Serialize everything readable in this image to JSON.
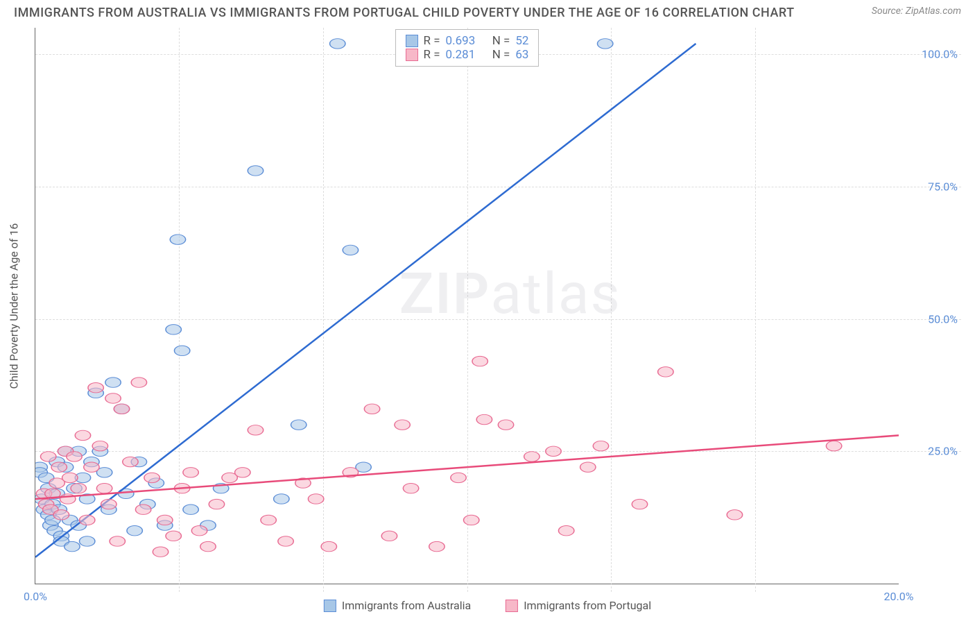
{
  "title": "IMMIGRANTS FROM AUSTRALIA VS IMMIGRANTS FROM PORTUGAL CHILD POVERTY UNDER THE AGE OF 16 CORRELATION CHART",
  "source_prefix": "Source: ",
  "source_link": "ZipAtlas.com",
  "y_axis_label": "Child Poverty Under the Age of 16",
  "watermark_a": "ZIP",
  "watermark_b": "atlas",
  "chart": {
    "type": "scatter",
    "xlim": [
      0,
      20
    ],
    "ylim": [
      0,
      105
    ],
    "x_ticks": [
      0,
      20
    ],
    "x_tick_labels": [
      "0.0%",
      "20.0%"
    ],
    "x_minor_ticks": [
      3.33,
      6.67,
      10,
      13.33,
      16.67
    ],
    "y_ticks": [
      25,
      50,
      75,
      100
    ],
    "y_tick_labels": [
      "25.0%",
      "50.0%",
      "75.0%",
      "100.0%"
    ],
    "grid_color": "#dddddd",
    "axis_color": "#666666",
    "background": "#ffffff",
    "tick_label_color": "#5b8dd6",
    "series": [
      {
        "name": "Immigrants from Australia",
        "fill": "#a7c7e7",
        "fill_opacity": 0.55,
        "stroke": "#5b8dd6",
        "marker_r": 9,
        "trend": {
          "x1": 0,
          "y1": 5,
          "x2": 15.3,
          "y2": 102,
          "color": "#2e6bd1",
          "width": 2.5
        },
        "R": "0.693",
        "N": "52",
        "points": [
          [
            0.1,
            22
          ],
          [
            0.1,
            21
          ],
          [
            0.15,
            16
          ],
          [
            0.2,
            14
          ],
          [
            0.25,
            20
          ],
          [
            0.3,
            18
          ],
          [
            0.3,
            13
          ],
          [
            0.35,
            11
          ],
          [
            0.4,
            15
          ],
          [
            0.4,
            12
          ],
          [
            0.45,
            10
          ],
          [
            0.5,
            17
          ],
          [
            0.5,
            23
          ],
          [
            0.55,
            14
          ],
          [
            0.6,
            9
          ],
          [
            0.6,
            8
          ],
          [
            0.7,
            25
          ],
          [
            0.7,
            22
          ],
          [
            0.8,
            12
          ],
          [
            0.85,
            7
          ],
          [
            0.9,
            18
          ],
          [
            1.0,
            25
          ],
          [
            1.0,
            11
          ],
          [
            1.1,
            20
          ],
          [
            1.2,
            16
          ],
          [
            1.2,
            8
          ],
          [
            1.3,
            23
          ],
          [
            1.4,
            36
          ],
          [
            1.5,
            25
          ],
          [
            1.6,
            21
          ],
          [
            1.7,
            14
          ],
          [
            1.8,
            38
          ],
          [
            2.0,
            33
          ],
          [
            2.1,
            17
          ],
          [
            2.3,
            10
          ],
          [
            2.4,
            23
          ],
          [
            2.6,
            15
          ],
          [
            2.8,
            19
          ],
          [
            3.0,
            11
          ],
          [
            3.2,
            48
          ],
          [
            3.3,
            65
          ],
          [
            3.4,
            44
          ],
          [
            3.6,
            14
          ],
          [
            4.0,
            11
          ],
          [
            4.3,
            18
          ],
          [
            5.1,
            78
          ],
          [
            5.7,
            16
          ],
          [
            6.1,
            30
          ],
          [
            7.0,
            102
          ],
          [
            7.3,
            63
          ],
          [
            7.6,
            22
          ],
          [
            13.2,
            102
          ]
        ]
      },
      {
        "name": "Immigrants from Portugal",
        "fill": "#f7b8c8",
        "fill_opacity": 0.55,
        "stroke": "#e86a92",
        "marker_r": 9,
        "trend": {
          "x1": 0,
          "y1": 16,
          "x2": 20,
          "y2": 28,
          "color": "#e84b7a",
          "width": 2.5
        },
        "R": "0.281",
        "N": "63",
        "points": [
          [
            0.2,
            17
          ],
          [
            0.25,
            15
          ],
          [
            0.3,
            24
          ],
          [
            0.35,
            14
          ],
          [
            0.4,
            17
          ],
          [
            0.5,
            19
          ],
          [
            0.55,
            22
          ],
          [
            0.6,
            13
          ],
          [
            0.7,
            25
          ],
          [
            0.75,
            16
          ],
          [
            0.8,
            20
          ],
          [
            0.9,
            24
          ],
          [
            1.0,
            18
          ],
          [
            1.1,
            28
          ],
          [
            1.2,
            12
          ],
          [
            1.3,
            22
          ],
          [
            1.4,
            37
          ],
          [
            1.5,
            26
          ],
          [
            1.6,
            18
          ],
          [
            1.7,
            15
          ],
          [
            1.8,
            35
          ],
          [
            1.9,
            8
          ],
          [
            2.0,
            33
          ],
          [
            2.2,
            23
          ],
          [
            2.4,
            38
          ],
          [
            2.5,
            14
          ],
          [
            2.7,
            20
          ],
          [
            2.9,
            6
          ],
          [
            3.0,
            12
          ],
          [
            3.2,
            9
          ],
          [
            3.4,
            18
          ],
          [
            3.6,
            21
          ],
          [
            3.8,
            10
          ],
          [
            4.0,
            7
          ],
          [
            4.2,
            15
          ],
          [
            4.5,
            20
          ],
          [
            4.8,
            21
          ],
          [
            5.1,
            29
          ],
          [
            5.4,
            12
          ],
          [
            5.8,
            8
          ],
          [
            6.2,
            19
          ],
          [
            6.5,
            16
          ],
          [
            6.8,
            7
          ],
          [
            7.3,
            21
          ],
          [
            7.8,
            33
          ],
          [
            8.2,
            9
          ],
          [
            8.5,
            30
          ],
          [
            8.7,
            18
          ],
          [
            9.3,
            7
          ],
          [
            9.8,
            20
          ],
          [
            10.1,
            12
          ],
          [
            10.3,
            42
          ],
          [
            10.4,
            31
          ],
          [
            10.9,
            30
          ],
          [
            11.5,
            24
          ],
          [
            12.0,
            25
          ],
          [
            12.3,
            10
          ],
          [
            12.8,
            22
          ],
          [
            13.1,
            26
          ],
          [
            14.0,
            15
          ],
          [
            14.6,
            40
          ],
          [
            16.2,
            13
          ],
          [
            18.5,
            26
          ]
        ]
      }
    ]
  },
  "stats_labels": {
    "R": "R =",
    "N": "N ="
  },
  "bottom_legend": [
    {
      "label": "Immigrants from Australia",
      "fill": "#a7c7e7",
      "stroke": "#5b8dd6"
    },
    {
      "label": "Immigrants from Portugal",
      "fill": "#f7b8c8",
      "stroke": "#e86a92"
    }
  ]
}
